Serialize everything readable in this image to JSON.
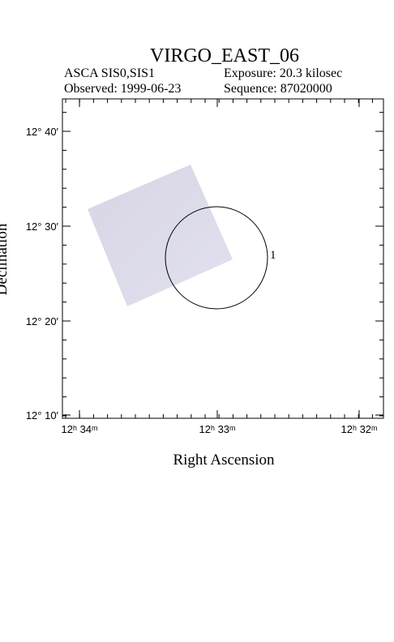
{
  "header": {
    "title": "VIRGO_EAST_06",
    "instrument": "ASCA SIS0,SIS1",
    "exposure": "Exposure: 20.3 kilosec",
    "observed": "Observed: 1999-06-23",
    "sequence": "Sequence: 87020000"
  },
  "plot": {
    "x_label": "Right Ascension",
    "y_label": "Declination",
    "x_tick_labels": [
      "12ʰ 34ᵐ",
      "12ʰ 33ᵐ",
      "12ʰ 32ᵐ"
    ],
    "y_tick_labels": [
      "12° 40′",
      "12° 30′",
      "12° 20′",
      "12° 10′"
    ],
    "source_label": "1"
  }
}
